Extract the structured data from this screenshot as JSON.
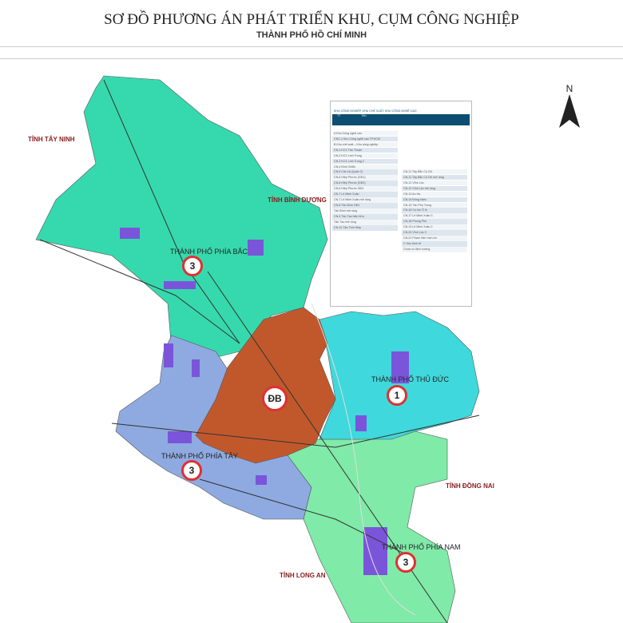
{
  "title": "SƠ ĐỒ PHƯƠNG ÁN PHÁT TRIỂN KHU, CỤM CÔNG NGHIỆP",
  "subtitle": "THÀNH PHỐ HỒ CHÍ MINH",
  "compass": "N",
  "colors": {
    "north": "#36d9ad",
    "center": "#c1582c",
    "east": "#3fd8dc",
    "west": "#8eaae0",
    "south": "#80eaa8",
    "industrial": "#7b55d9",
    "badge": "#e03030"
  },
  "neighbors": {
    "tay_ninh": "TỈNH TÂY NINH",
    "binh_duong": "TỈNH BÌNH DƯƠNG",
    "dong_nai": "TỈNH ĐỒNG NAI",
    "long_an": "TỈNH LONG AN"
  },
  "cities": {
    "north": "THÀNH PHỐ PHÍA BẮC",
    "north_no": "3",
    "thu_duc": "THÀNH PHỐ THỦ ĐỨC",
    "thu_duc_no": "1",
    "west": "THÀNH PHỐ PHÍA TÂY",
    "west_no": "3",
    "south": "THÀNH PHỐ PHÍA NAM",
    "south_no": "3",
    "center_no": "ĐB"
  },
  "legend": {
    "heading": "KHU CÔNG NGHIỆP, KHU CHẾ XUẤT, KHU CÔNG NGHỆ CAO",
    "col_tt": "TT",
    "col_name": "Tên",
    "left": [
      "A   Khu Công nghệ cao",
      "CNC-1 Khu Công nghệ cao TP.HCM",
      "B   Khu chế xuất – Khu công nghiệp",
      "CN-1 KCX Tân Thuận",
      "CN-2 KCX Linh Trung",
      "CN-3 KCX Linh Trung 2",
      "CN-4 Bình Chiểu",
      "CN-5 Cát Lái (Quận 2)",
      "CN-6 Hiệp Phước (GĐ1)",
      "CN-6 Hiệp Phước (GĐ2)",
      "CN-6 Hiệp Phước GĐ3",
      "CN-7 Lê Minh Xuân",
      "CN-7 Lê Minh Xuân mở rộng",
      "CN-8 Tân Bình GĐ1",
      "Tân Bình mở rộng",
      "CN-9 Tân Tạo hiện hữu",
      "Tân Tạo mở rộng",
      "CN-10 Tân Thới Hiệp"
    ],
    "right": [
      "CN-11 Tây Bắc Củ Chi",
      "CN-11 Tây Bắc Củ Chi mở rộng",
      "CN-12 Vĩnh Lộc",
      "CN-12 Vĩnh Lộc mở rộng",
      "CN-13 An Hạ",
      "CN-14 Đông Nam",
      "CN-15 Tân Phú Trung",
      "CN-16 Cơ khí Ô tô",
      "CN-17 Lê Minh Xuân 3",
      "CN-18 Phong Phú",
      "CN-19 Lê Minh Xuân 2",
      "CN-20 Vĩnh Lộc 3",
      "CN-21 Phạm Văn Hai Lớn",
      "C   Khu Kinh tế",
      "Chưa có định hướng"
    ]
  }
}
